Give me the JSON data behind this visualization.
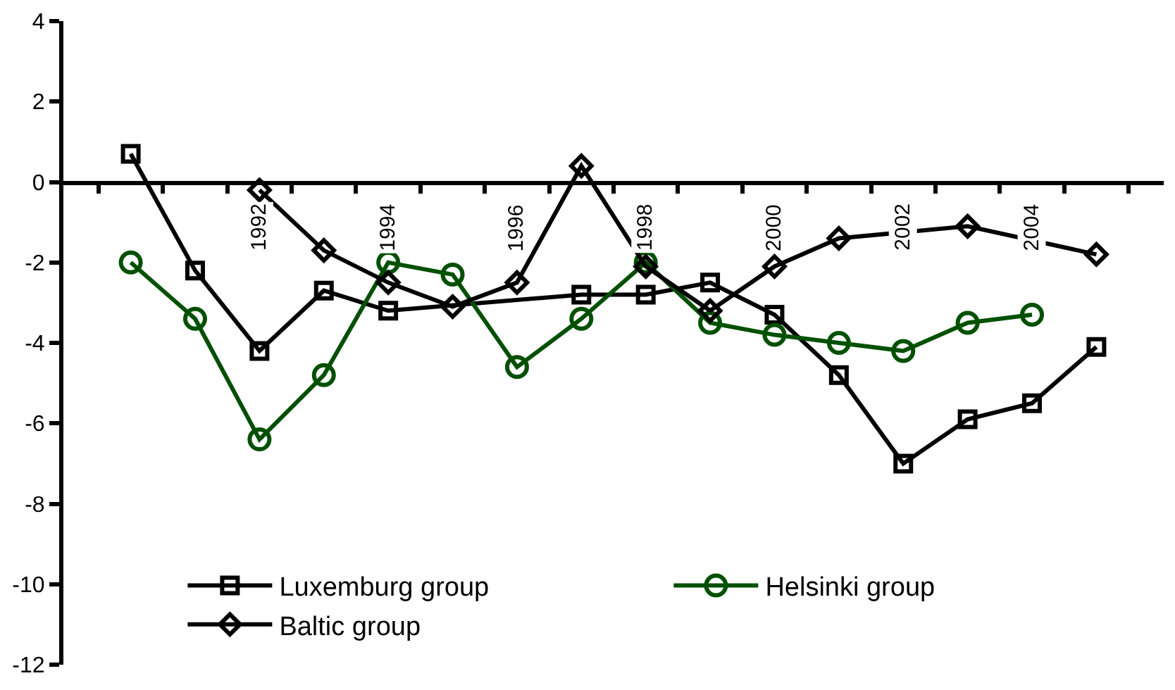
{
  "chart_data": {
    "type": "line",
    "categories": [
      null,
      null,
      "1992",
      null,
      "1994",
      null,
      "1996",
      null,
      "1998",
      null,
      "2000",
      null,
      "2002",
      null,
      "2004",
      null
    ],
    "series": [
      {
        "name": "Luxemburg group",
        "color": "#000000",
        "marker": "square",
        "values": [
          0.7,
          -2.2,
          -4.2,
          -2.7,
          -3.2,
          null,
          null,
          -2.8,
          -2.8,
          -2.5,
          -3.3,
          -4.8,
          -7.0,
          -5.9,
          -5.5,
          -4.1
        ]
      },
      {
        "name": "Helsinki group",
        "color": "#005000",
        "marker": "circle",
        "values": [
          -2.0,
          -3.4,
          -6.4,
          -4.8,
          -2.0,
          -2.3,
          -4.6,
          -3.4,
          -2.0,
          -3.5,
          -3.8,
          -4.0,
          -4.2,
          -3.5,
          -3.3,
          null
        ]
      },
      {
        "name": "Baltic group",
        "color": "#000000",
        "marker": "diamond",
        "values": [
          null,
          null,
          -0.2,
          -1.7,
          -2.5,
          -3.1,
          -2.5,
          0.4,
          -2.1,
          -3.2,
          -2.1,
          -1.4,
          null,
          -1.1,
          null,
          -1.8
        ]
      }
    ],
    "ylim": [
      -12,
      4
    ],
    "yticks": [
      -12,
      -10,
      -8,
      -6,
      -4,
      -2,
      0,
      2,
      4
    ],
    "legend": "bottom right",
    "line_style": "solid"
  }
}
